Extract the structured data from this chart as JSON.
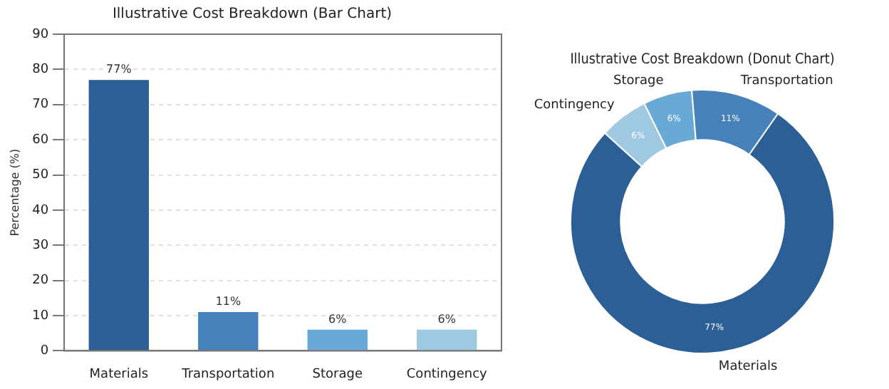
{
  "chart_data": [
    {
      "type": "bar",
      "title": "Illustrative Cost Breakdown (Bar Chart)",
      "ylabel": "Percentage (%)",
      "categories": [
        "Materials",
        "Transportation",
        "Storage",
        "Contingency"
      ],
      "values": [
        77,
        11,
        6,
        6
      ],
      "colors": [
        "#2b5f95",
        "#4682b9",
        "#68a9d6",
        "#9fc8e1"
      ],
      "value_labels": [
        "77%",
        "11%",
        "6%",
        "6%"
      ],
      "ylim": [
        0,
        90
      ],
      "yticks": [
        0,
        10,
        20,
        30,
        40,
        50,
        60,
        70,
        80,
        90
      ],
      "grid": "y",
      "legend": false
    },
    {
      "type": "donut",
      "title": "Illustrative Cost Breakdown (Donut Chart)",
      "categories": [
        "Materials",
        "Transportation",
        "Storage",
        "Contingency"
      ],
      "values": [
        77,
        11,
        6,
        6
      ],
      "colors": [
        "#2b5f95",
        "#4682b9",
        "#68a9d6",
        "#9fc8e1"
      ],
      "value_labels": [
        "77%",
        "11%",
        "6%",
        "6%"
      ],
      "legend": false
    }
  ]
}
